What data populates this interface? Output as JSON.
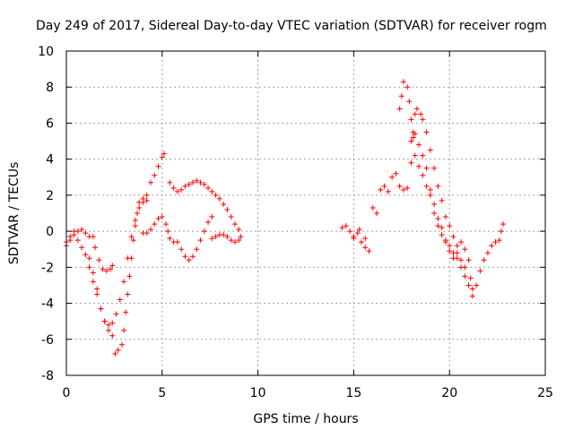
{
  "chart_data": {
    "type": "scatter",
    "title": "Day 249 of 2017, Sidereal Day-to-day VTEC variation (SDTVAR) for receiver rogm",
    "xlabel": "GPS time / hours",
    "ylabel": "SDTVAR / TECUs",
    "xlim": [
      0,
      25
    ],
    "ylim": [
      -8,
      10
    ],
    "xticks": [
      "0",
      "5",
      "10",
      "15",
      "20",
      "25"
    ],
    "yticks": [
      "-8",
      "-6",
      "-4",
      "-2",
      "0",
      "2",
      "4",
      "6",
      "8",
      "10"
    ],
    "grid": true,
    "marker": "+",
    "color": "#ff0000",
    "series": [
      {
        "points": [
          [
            0.0,
            -0.8
          ],
          [
            0.2,
            -0.3
          ],
          [
            0.4,
            0.0
          ],
          [
            0.6,
            -0.5
          ],
          [
            0.8,
            -0.9
          ],
          [
            1.0,
            -1.3
          ],
          [
            1.2,
            -2.0
          ],
          [
            1.4,
            -2.8
          ],
          [
            1.6,
            -3.5
          ],
          [
            1.8,
            -4.3
          ],
          [
            2.0,
            -5.0
          ],
          [
            2.2,
            -5.5
          ],
          [
            2.4,
            -5.8
          ],
          [
            2.55,
            -6.8
          ],
          [
            2.7,
            -6.6
          ],
          [
            2.9,
            -6.3
          ],
          [
            3.0,
            -5.5
          ],
          [
            3.1,
            -4.5
          ],
          [
            3.2,
            -3.5
          ],
          [
            3.3,
            -2.5
          ],
          [
            3.4,
            -1.5
          ],
          [
            3.5,
            -0.5
          ],
          [
            3.6,
            0.3
          ],
          [
            3.7,
            1.0
          ],
          [
            3.8,
            1.6
          ],
          [
            4.0,
            1.8
          ],
          [
            4.2,
            2.0
          ],
          [
            4.4,
            2.7
          ],
          [
            4.6,
            3.1
          ],
          [
            4.8,
            3.6
          ],
          [
            5.0,
            4.1
          ],
          [
            5.1,
            4.3
          ],
          [
            0.0,
            -0.6
          ],
          [
            0.2,
            -0.5
          ],
          [
            0.4,
            -0.2
          ],
          [
            0.6,
            0.0
          ],
          [
            0.8,
            0.1
          ],
          [
            1.0,
            -0.1
          ],
          [
            1.2,
            -0.3
          ],
          [
            1.4,
            -0.3
          ],
          [
            1.5,
            -0.9
          ],
          [
            1.7,
            -1.6
          ],
          [
            1.9,
            -2.1
          ],
          [
            2.1,
            -2.2
          ],
          [
            2.3,
            -2.1
          ],
          [
            2.4,
            -1.9
          ],
          [
            1.2,
            -1.5
          ],
          [
            1.4,
            -2.3
          ],
          [
            1.6,
            -3.2
          ],
          [
            1.8,
            -4.3
          ],
          [
            2.0,
            -5.0
          ],
          [
            2.2,
            -5.2
          ],
          [
            2.4,
            -5.1
          ],
          [
            2.6,
            -4.6
          ],
          [
            2.8,
            -3.8
          ],
          [
            3.0,
            -2.8
          ],
          [
            3.2,
            -1.5
          ],
          [
            3.4,
            -0.3
          ],
          [
            3.6,
            0.6
          ],
          [
            3.8,
            1.3
          ],
          [
            4.0,
            1.6
          ],
          [
            4.2,
            1.7
          ],
          [
            4.0,
            -0.1
          ],
          [
            4.2,
            -0.1
          ],
          [
            4.4,
            0.1
          ],
          [
            4.6,
            0.4
          ],
          [
            4.8,
            0.7
          ],
          [
            5.0,
            0.8
          ],
          [
            5.2,
            0.4
          ],
          [
            5.3,
            0.0
          ],
          [
            5.4,
            -0.4
          ],
          [
            5.6,
            -0.6
          ],
          [
            5.8,
            -0.6
          ],
          [
            6.0,
            -1.0
          ],
          [
            6.2,
            -1.4
          ],
          [
            6.4,
            -1.6
          ],
          [
            6.6,
            -1.4
          ],
          [
            6.8,
            -1.0
          ],
          [
            7.0,
            -0.5
          ],
          [
            7.2,
            0.0
          ],
          [
            7.4,
            0.5
          ],
          [
            7.6,
            0.8
          ],
          [
            5.4,
            2.7
          ],
          [
            5.6,
            2.4
          ],
          [
            5.8,
            2.2
          ],
          [
            6.0,
            2.3
          ],
          [
            6.2,
            2.5
          ],
          [
            6.4,
            2.6
          ],
          [
            6.6,
            2.7
          ],
          [
            6.8,
            2.8
          ],
          [
            7.0,
            2.7
          ],
          [
            7.2,
            2.6
          ],
          [
            7.4,
            2.4
          ],
          [
            7.6,
            2.2
          ],
          [
            7.8,
            2.0
          ],
          [
            8.0,
            1.8
          ],
          [
            8.2,
            1.5
          ],
          [
            8.4,
            1.2
          ],
          [
            8.6,
            0.8
          ],
          [
            8.8,
            0.4
          ],
          [
            9.0,
            0.1
          ],
          [
            9.1,
            -0.3
          ],
          [
            7.6,
            -0.4
          ],
          [
            7.8,
            -0.3
          ],
          [
            8.0,
            -0.2
          ],
          [
            8.2,
            -0.2
          ],
          [
            8.4,
            -0.3
          ],
          [
            8.6,
            -0.5
          ],
          [
            8.8,
            -0.6
          ],
          [
            9.0,
            -0.5
          ],
          [
            14.4,
            0.2
          ],
          [
            14.6,
            0.3
          ],
          [
            14.8,
            0.0
          ],
          [
            15.0,
            -0.3
          ],
          [
            15.2,
            -0.1
          ],
          [
            15.4,
            -0.6
          ],
          [
            15.6,
            -0.9
          ],
          [
            15.8,
            -1.1
          ],
          [
            15.0,
            -0.4
          ],
          [
            15.3,
            0.1
          ],
          [
            15.6,
            -0.4
          ],
          [
            16.0,
            1.3
          ],
          [
            16.2,
            1.0
          ],
          [
            16.4,
            2.3
          ],
          [
            16.6,
            2.5
          ],
          [
            16.8,
            2.2
          ],
          [
            17.0,
            3.0
          ],
          [
            17.2,
            3.2
          ],
          [
            17.4,
            2.5
          ],
          [
            17.6,
            2.3
          ],
          [
            17.4,
            6.8
          ],
          [
            17.5,
            7.5
          ],
          [
            17.6,
            8.3
          ],
          [
            17.8,
            8.0
          ],
          [
            17.9,
            7.2
          ],
          [
            18.0,
            6.2
          ],
          [
            18.1,
            5.2
          ],
          [
            18.2,
            4.2
          ],
          [
            18.4,
            3.6
          ],
          [
            18.6,
            3.1
          ],
          [
            18.8,
            2.5
          ],
          [
            19.0,
            2.0
          ],
          [
            19.2,
            1.0
          ],
          [
            19.4,
            0.3
          ],
          [
            19.6,
            -0.2
          ],
          [
            19.8,
            -0.5
          ],
          [
            20.0,
            -0.8
          ],
          [
            20.2,
            -1.2
          ],
          [
            20.4,
            -1.5
          ],
          [
            20.6,
            -2.0
          ],
          [
            20.8,
            -2.5
          ],
          [
            21.0,
            -3.0
          ],
          [
            21.2,
            -3.6
          ],
          [
            21.4,
            -3.0
          ],
          [
            21.6,
            -2.2
          ],
          [
            21.8,
            -1.6
          ],
          [
            22.0,
            -1.2
          ],
          [
            22.2,
            -0.8
          ],
          [
            22.4,
            -0.6
          ],
          [
            22.6,
            -0.5
          ],
          [
            22.7,
            0.0
          ],
          [
            22.8,
            0.4
          ],
          [
            17.8,
            2.4
          ],
          [
            18.0,
            3.8
          ],
          [
            18.1,
            5.5
          ],
          [
            18.2,
            6.5
          ],
          [
            18.3,
            6.8
          ],
          [
            18.5,
            6.5
          ],
          [
            18.6,
            6.2
          ],
          [
            18.8,
            5.5
          ],
          [
            19.0,
            4.5
          ],
          [
            19.2,
            3.5
          ],
          [
            19.4,
            2.5
          ],
          [
            19.6,
            1.7
          ],
          [
            19.8,
            0.8
          ],
          [
            20.0,
            0.3
          ],
          [
            20.2,
            -0.3
          ],
          [
            20.4,
            -0.8
          ],
          [
            20.6,
            -0.6
          ],
          [
            20.8,
            -1.0
          ],
          [
            21.0,
            -1.6
          ],
          [
            21.1,
            -2.6
          ],
          [
            21.2,
            -3.2
          ],
          [
            18.0,
            5.0
          ],
          [
            18.2,
            5.4
          ],
          [
            18.4,
            4.8
          ],
          [
            18.6,
            4.2
          ],
          [
            18.8,
            3.5
          ],
          [
            19.0,
            2.3
          ],
          [
            19.2,
            1.5
          ],
          [
            19.4,
            0.7
          ],
          [
            19.6,
            0.2
          ],
          [
            19.8,
            -0.6
          ],
          [
            20.0,
            -1.1
          ],
          [
            20.2,
            -1.5
          ],
          [
            20.4,
            -1.2
          ],
          [
            20.6,
            -1.6
          ],
          [
            20.8,
            -2.0
          ]
        ]
      }
    ]
  }
}
